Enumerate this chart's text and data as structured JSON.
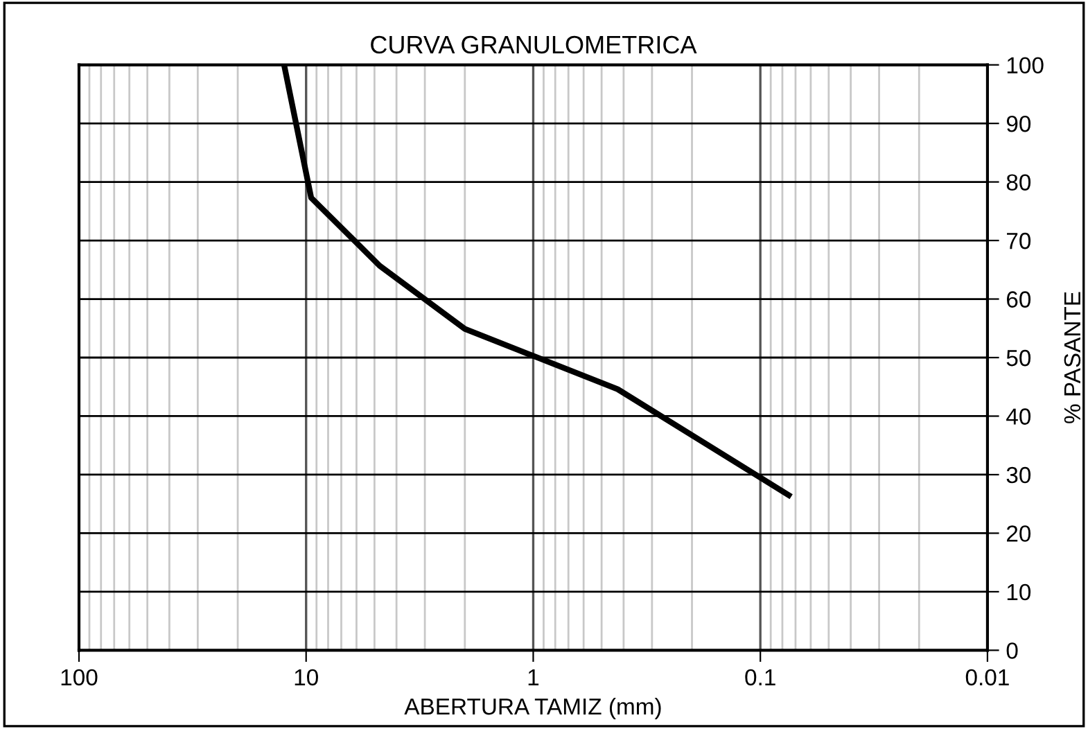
{
  "chart_data": {
    "type": "line",
    "title": "CURVA GRANULOMETRICA",
    "xlabel": "ABERTURA TAMIZ (mm)",
    "ylabel": "% PASANTE",
    "x": [
      12.5,
      9.5,
      4.75,
      2,
      0.425,
      0.075
    ],
    "series": [
      {
        "color": "#000000",
        "values": [
          100,
          77.3,
          65.7,
          54.9,
          44.6,
          26.5
        ]
      }
    ],
    "log": "x",
    "xlim": [
      100,
      0.01
    ],
    "xticks": [
      100,
      10,
      1,
      0.1,
      0.01
    ],
    "ylim": [
      0,
      100
    ],
    "yticks": [
      0,
      10,
      20,
      30,
      40,
      50,
      60,
      70,
      80,
      90,
      100
    ],
    "grid": true,
    "marker": "none",
    "line_style": "solid"
  }
}
